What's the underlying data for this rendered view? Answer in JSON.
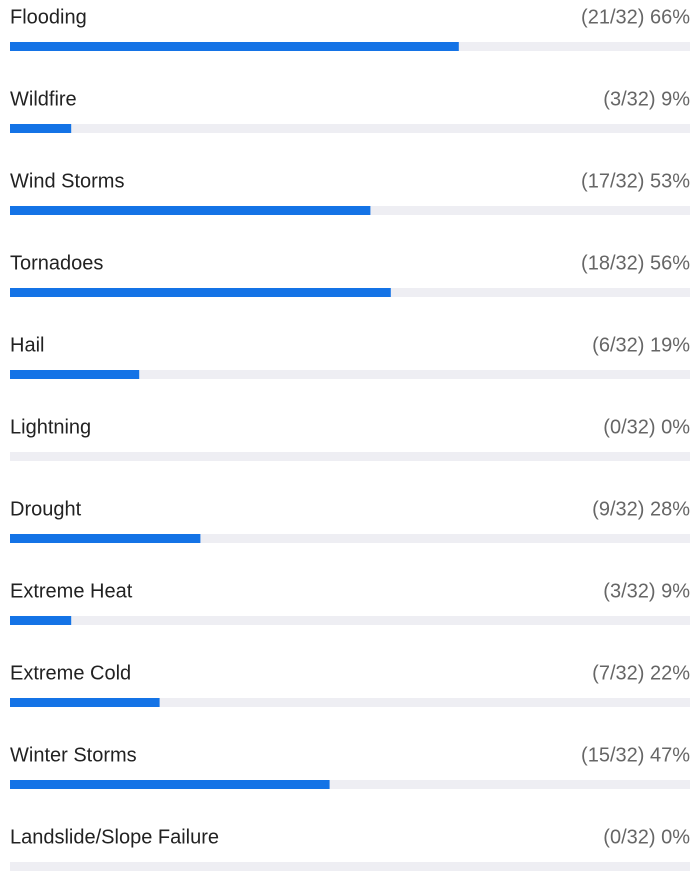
{
  "chart_data": {
    "type": "bar",
    "orientation": "horizontal",
    "categories": [
      "Flooding",
      "Wildfire",
      "Wind Storms",
      "Tornadoes",
      "Hail",
      "Lightning",
      "Drought",
      "Extreme Heat",
      "Extreme Cold",
      "Winter Storms",
      "Landslide/Slope Failure"
    ],
    "values": [
      66,
      9,
      53,
      56,
      19,
      0,
      28,
      9,
      22,
      47,
      0
    ],
    "value_labels": [
      "(21/32) 66%",
      "(3/32) 9%",
      "(17/32) 53%",
      "(18/32) 56%",
      "(6/32) 19%",
      "(0/32) 0%",
      "(9/32) 28%",
      "(3/32) 9%",
      "(7/32) 22%",
      "(15/32) 47%",
      "(0/32) 0%"
    ],
    "color": "#1473e6",
    "track_color": "#eeeef3",
    "xlim": [
      0,
      100
    ]
  }
}
